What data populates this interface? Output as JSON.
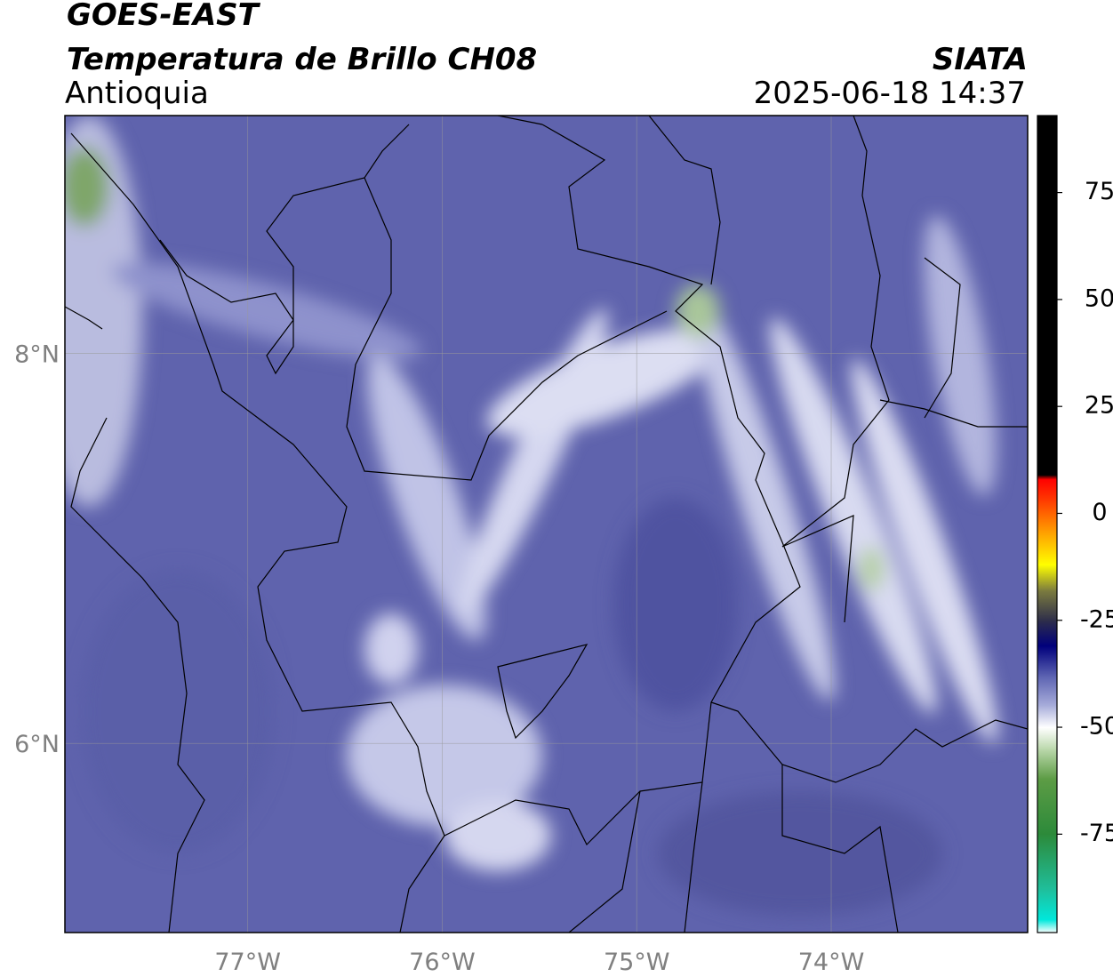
{
  "title": "GOES-EAST",
  "subtitle": "Temperatura de Brillo CH08",
  "agency": "SIATA",
  "region": "Antioquia",
  "timestamp": "2025-06-18 14:37",
  "map": {
    "xlim": [
      -77.94,
      -72.99
    ],
    "ylim": [
      5.03,
      9.22
    ],
    "xticks": [
      {
        "value": -77,
        "label": "77°W"
      },
      {
        "value": -76,
        "label": "76°W"
      },
      {
        "value": -75,
        "label": "75°W"
      },
      {
        "value": -74,
        "label": "74°W"
      }
    ],
    "yticks": [
      {
        "value": 6,
        "label": "6°N"
      },
      {
        "value": 8,
        "label": "8°N"
      }
    ],
    "grid": true
  },
  "colorbar": {
    "clim": [
      -98,
      93
    ],
    "ticks": [
      -75,
      -50,
      -25,
      0,
      25,
      50,
      75
    ],
    "colormap": [
      {
        "value": -98,
        "color": "#ffffff"
      },
      {
        "value": -95,
        "color": "#00e8dc"
      },
      {
        "value": -88,
        "color": "#1fbf9c"
      },
      {
        "value": -75,
        "color": "#2c8a3a"
      },
      {
        "value": -62,
        "color": "#5d9c45"
      },
      {
        "value": -55,
        "color": "#bcd9ad"
      },
      {
        "value": -50,
        "color": "#ffffff"
      },
      {
        "value": -45,
        "color": "#a9aedb"
      },
      {
        "value": -38,
        "color": "#5b62b1"
      },
      {
        "value": -31,
        "color": "#00007c"
      },
      {
        "value": -25,
        "color": "#2e2e4a"
      },
      {
        "value": -18,
        "color": "#7c7c3e"
      },
      {
        "value": -12,
        "color": "#ffff00"
      },
      {
        "value": -4,
        "color": "#ff9a00"
      },
      {
        "value": 3,
        "color": "#ff3c00"
      },
      {
        "value": 8,
        "color": "#ff0000"
      },
      {
        "value": 9,
        "color": "#000000"
      },
      {
        "value": 93,
        "color": "#000000"
      }
    ]
  }
}
